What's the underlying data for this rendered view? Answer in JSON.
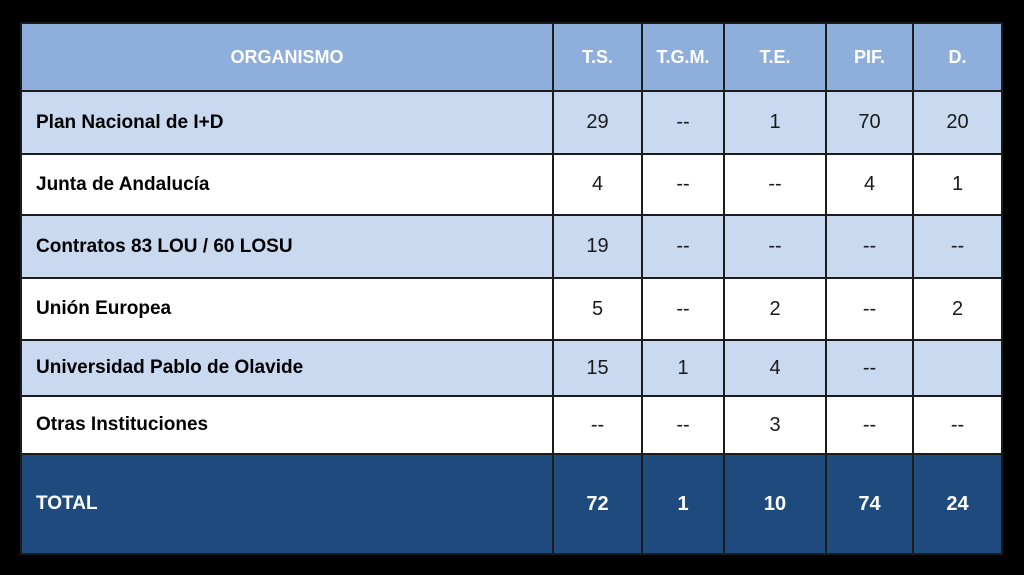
{
  "colors": {
    "page_background": "#000000",
    "header_background": "#8EAEDC",
    "band_row_background": "#C8D9F0",
    "plain_row_background": "#FFFFFF",
    "total_row_background": "#1F4A7D",
    "grid_line": "#1C1C1C",
    "header_text": "#FFFFFF",
    "body_text": "#000000",
    "total_text": "#FFFFFF"
  },
  "table": {
    "header": {
      "organismo": "ORGANISMO",
      "columns": [
        "T.S.",
        "T.G.M.",
        "T.E.",
        "PIF.",
        "D."
      ]
    },
    "rows": [
      {
        "label": "Plan Nacional de I+D",
        "values": [
          "29",
          "--",
          "1",
          "70",
          "20"
        ]
      },
      {
        "label": "Junta de Andalucía",
        "values": [
          "4",
          "--",
          "--",
          "4",
          "1"
        ]
      },
      {
        "label": "Contratos 83 LOU / 60 LOSU",
        "values": [
          "19",
          "--",
          "--",
          "--",
          "--"
        ]
      },
      {
        "label": "Unión Europea",
        "values": [
          "5",
          "--",
          "2",
          "--",
          "2"
        ]
      },
      {
        "label": "Universidad Pablo de Olavide",
        "values": [
          "15",
          "1",
          "4",
          "--",
          ""
        ]
      },
      {
        "label": "Otras Instituciones",
        "values": [
          "--",
          "--",
          "3",
          "--",
          "--"
        ]
      }
    ],
    "total": {
      "label": "TOTAL",
      "values": [
        "72",
        "1",
        "10",
        "74",
        "24"
      ]
    }
  }
}
